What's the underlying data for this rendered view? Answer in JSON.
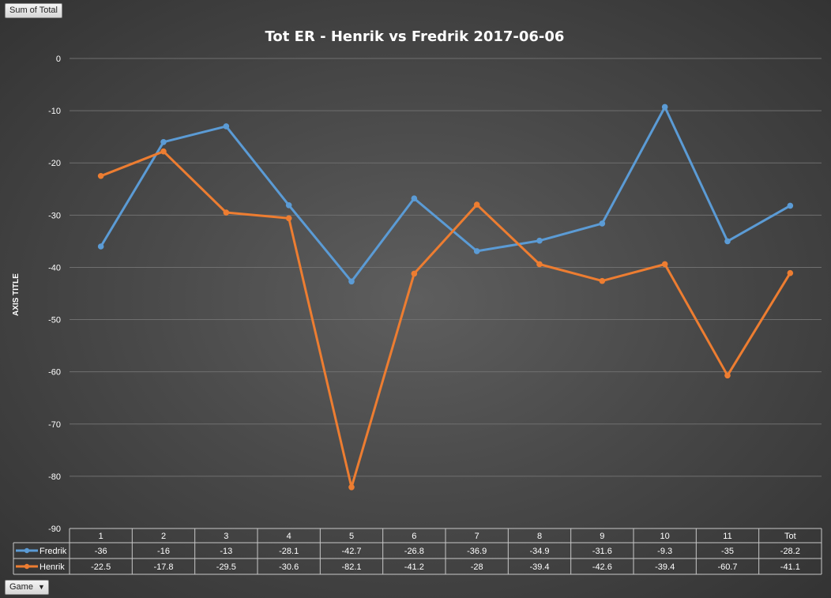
{
  "pivot": {
    "value_field": "Sum of Total",
    "axis_field": "Game"
  },
  "chart_data": {
    "type": "line",
    "title": "Tot ER - Henrik vs Fredrik 2017-06-06",
    "ylabel": "AXIS TITLE",
    "xlabel": "",
    "ylim": [
      -90,
      0
    ],
    "yticks": [
      0,
      -10,
      -20,
      -30,
      -40,
      -50,
      -60,
      -70,
      -80,
      -90
    ],
    "grid": true,
    "legend": "data-table",
    "categories": [
      "1",
      "2",
      "3",
      "4",
      "5",
      "6",
      "7",
      "8",
      "9",
      "10",
      "11",
      "Tot"
    ],
    "series": [
      {
        "name": "Fredrik",
        "color": "#5b9bd5",
        "values": [
          -36,
          -16,
          -13,
          -28.1,
          -42.7,
          -26.8,
          -36.9,
          -34.9,
          -31.6,
          -9.3,
          -35,
          -28.2
        ]
      },
      {
        "name": "Henrik",
        "color": "#ed7d31",
        "values": [
          -22.5,
          -17.8,
          -29.5,
          -30.6,
          -82.1,
          -41.2,
          -28,
          -39.4,
          -42.6,
          -39.4,
          -60.7,
          -41.1
        ]
      }
    ]
  }
}
